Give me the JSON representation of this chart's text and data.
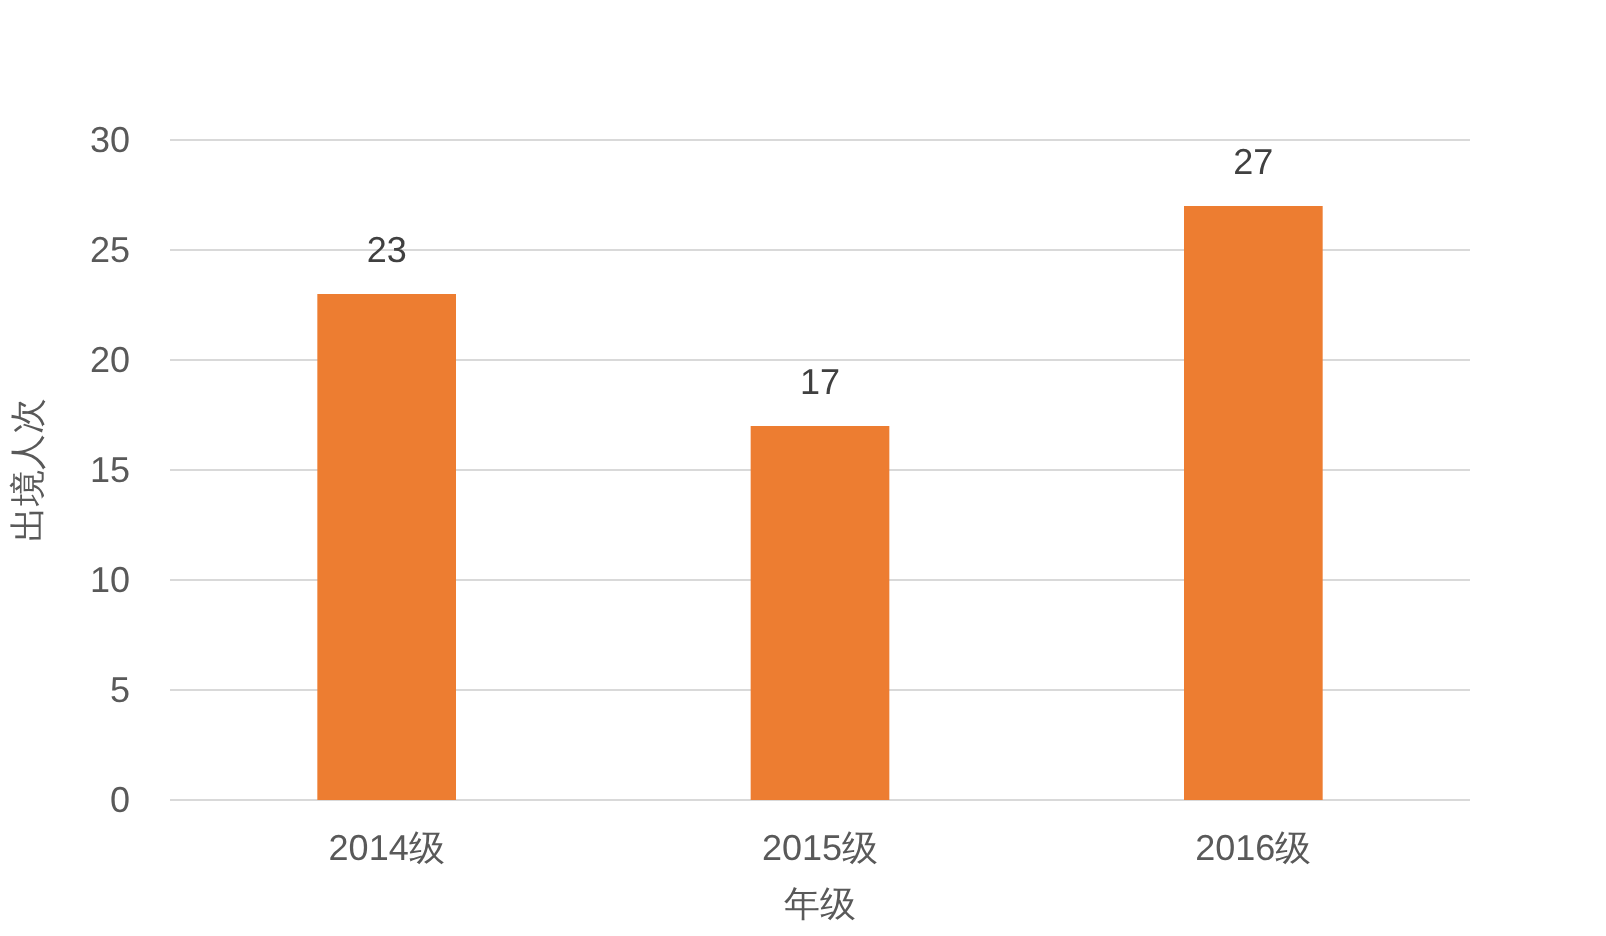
{
  "chart_data": {
    "type": "bar",
    "xlabel": "年级",
    "ylabel": "出境人次",
    "categories": [
      "2014级",
      "2015级",
      "2016级"
    ],
    "values": [
      23,
      17,
      27
    ],
    "color": "#ed7d31",
    "ylim": [
      0,
      30
    ],
    "yticks": [
      0,
      5,
      10,
      15,
      20,
      25,
      30
    ],
    "grid": "y",
    "data_labels": true
  }
}
